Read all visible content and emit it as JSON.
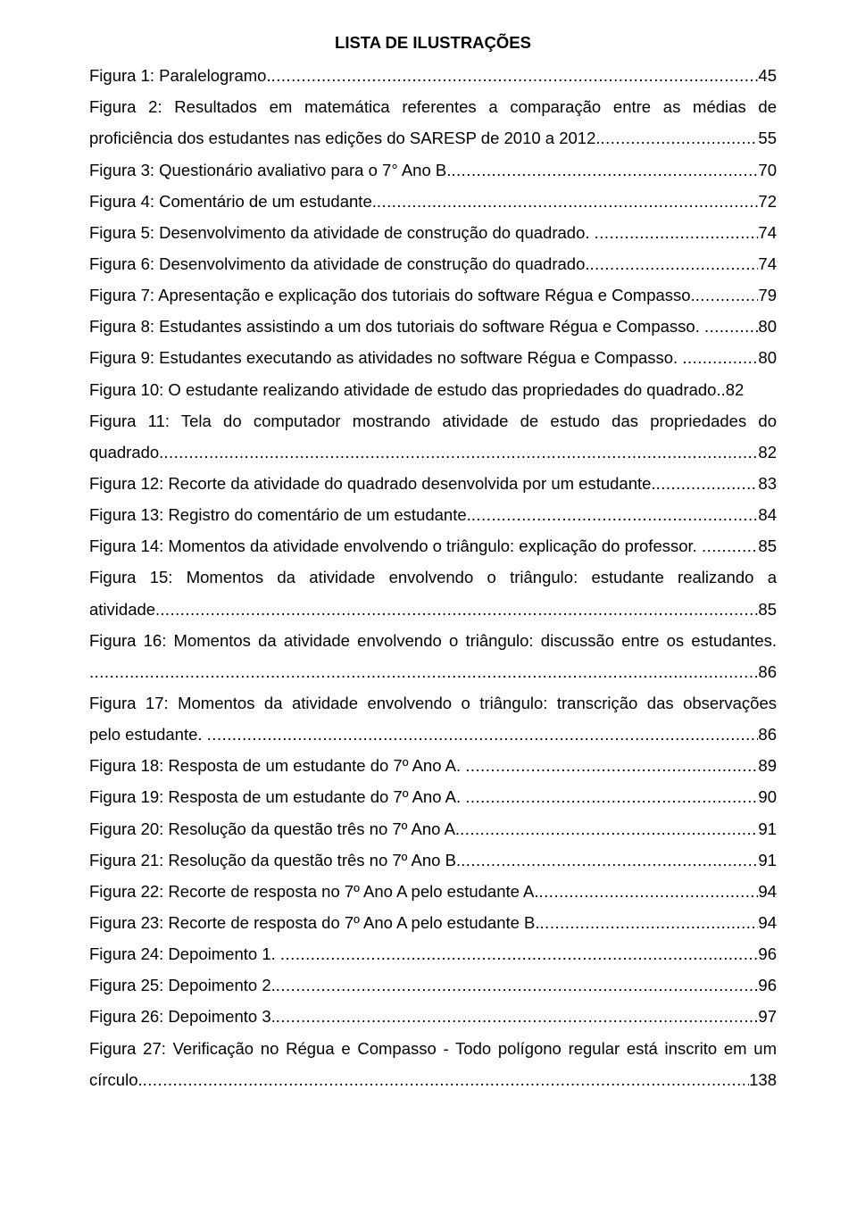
{
  "title": "LISTA DE ILUSTRAÇÕES",
  "entries": [
    {
      "text": "Figura 1: Paralelogramo.",
      "page": "45"
    },
    {
      "text_lines": [
        "Figura 2: Resultados em matemática referentes a comparação entre as médias de",
        "proficiência dos estudantes nas edições do SARESP de 2010 a 2012."
      ],
      "page": "55"
    },
    {
      "text": "Figura 3: Questionário avaliativo para o 7° Ano B.",
      "page": "70"
    },
    {
      "text": "Figura 4: Comentário de um estudante.",
      "page": "72"
    },
    {
      "text": "Figura 5: Desenvolvimento da atividade de construção do quadrado. ",
      "page": "74"
    },
    {
      "text": "Figura 6: Desenvolvimento da atividade de construção do quadrado.",
      "page": "74"
    },
    {
      "text": "Figura 7: Apresentação e explicação dos tutoriais do software Régua e Compasso.",
      "page": "79"
    },
    {
      "text": "Figura 8: Estudantes assistindo a um dos tutoriais do software Régua e Compasso. ",
      "page": "80"
    },
    {
      "text": "Figura 9: Estudantes executando as atividades no software Régua e Compasso. ",
      "page": "80"
    },
    {
      "text": "Figura 10: O estudante realizando atividade de estudo das propriedades do quadrado.",
      "page": ".82",
      "nodots": true
    },
    {
      "text_lines": [
        "Figura 11: Tela do computador mostrando atividade de estudo das propriedades do",
        "quadrado."
      ],
      "page": "82"
    },
    {
      "text": "Figura 12: Recorte da atividade do quadrado desenvolvida por um estudante.",
      "page": "83"
    },
    {
      "text": "Figura 13: Registro do comentário de um estudante.",
      "page": "84"
    },
    {
      "text": "Figura 14: Momentos da atividade envolvendo o triângulo: explicação do professor. ",
      "page": "85"
    },
    {
      "text_lines": [
        "Figura 15: Momentos da atividade envolvendo o triângulo: estudante realizando a",
        "atividade."
      ],
      "page": "85"
    },
    {
      "text_lines": [
        "Figura 16: Momentos da atividade envolvendo o triângulo: discussão entre os estudantes.",
        ""
      ],
      "page": "86"
    },
    {
      "text_lines": [
        "Figura 17: Momentos da atividade envolvendo o triângulo: transcrição das observações",
        "pelo estudante. "
      ],
      "page": "86"
    },
    {
      "text": "Figura 18: Resposta de um estudante do 7º Ano A. ",
      "page": "89"
    },
    {
      "text": "Figura 19: Resposta de um estudante do 7º Ano A. ",
      "page": "90"
    },
    {
      "text": "Figura 20: Resolução da questão três no 7º Ano A.",
      "page": "91"
    },
    {
      "text": "Figura 21: Resolução da questão três no 7º Ano B.",
      "page": "91"
    },
    {
      "text": "Figura 22: Recorte de resposta no 7º Ano A pelo estudante A.",
      "page": "94"
    },
    {
      "text": "Figura 23: Recorte de resposta do 7º Ano A pelo estudante B.",
      "page": "94"
    },
    {
      "text": "Figura 24: Depoimento 1. ",
      "page": "96"
    },
    {
      "text": "Figura 25: Depoimento 2.",
      "page": "96"
    },
    {
      "text": "Figura 26: Depoimento 3.",
      "page": "97"
    },
    {
      "text_lines": [
        "Figura 27: Verificação no Régua e Compasso - Todo polígono regular está inscrito em um",
        "círculo."
      ],
      "page": "138"
    }
  ],
  "dot_fill": "......................................................................................................................................................................................................................................"
}
